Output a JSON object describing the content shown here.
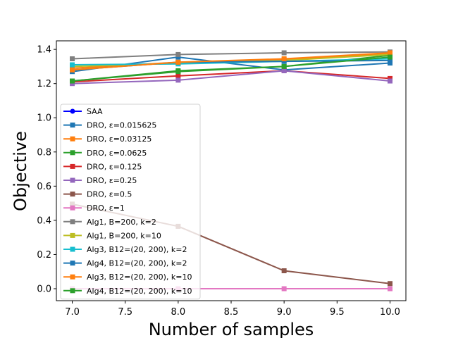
{
  "chart_data": {
    "type": "line",
    "xlabel": "Number of samples",
    "ylabel": "Objective",
    "xlim": [
      6.85,
      10.15
    ],
    "ylim": [
      -0.07,
      1.45
    ],
    "xticks": [
      7.0,
      7.5,
      8.0,
      8.5,
      9.0,
      9.5,
      10.0
    ],
    "xtick_labels": [
      "7.0",
      "7.5",
      "8.0",
      "8.5",
      "9.0",
      "9.5",
      "10.0"
    ],
    "yticks": [
      0.0,
      0.2,
      0.4,
      0.6,
      0.8,
      1.0,
      1.2,
      1.4
    ],
    "ytick_labels": [
      "0.0",
      "0.2",
      "0.4",
      "0.6",
      "0.8",
      "1.0",
      "1.2",
      "1.4"
    ],
    "legend_position": "lower-left",
    "x": [
      7,
      8,
      9,
      10
    ],
    "series": [
      {
        "name": "SAA",
        "color": "#0000ff",
        "marker": "circle",
        "values": [
          null,
          null,
          null,
          null
        ]
      },
      {
        "name": "DRO, ε=0.015625",
        "color": "#1f77b4",
        "marker": "square",
        "values": [
          1.27,
          1.355,
          1.28,
          1.32
        ]
      },
      {
        "name": "DRO, ε=0.03125",
        "color": "#ff7f0e",
        "marker": "square",
        "values": [
          1.29,
          1.325,
          1.34,
          1.375
        ]
      },
      {
        "name": "DRO, ε=0.0625",
        "color": "#2ca02c",
        "marker": "square",
        "values": [
          1.215,
          1.275,
          1.3,
          1.365
        ]
      },
      {
        "name": "DRO, ε=0.125",
        "color": "#d62728",
        "marker": "square",
        "values": [
          1.21,
          1.245,
          1.275,
          1.23
        ]
      },
      {
        "name": "DRO, ε=0.25",
        "color": "#9467bd",
        "marker": "square",
        "values": [
          1.2,
          1.22,
          1.275,
          1.215
        ]
      },
      {
        "name": "DRO, ε=0.5",
        "color": "#8c564b",
        "marker": "square",
        "values": [
          0.495,
          0.365,
          0.105,
          0.03
        ]
      },
      {
        "name": "DRO, ε=1",
        "color": "#e377c2",
        "marker": "square",
        "values": [
          0.0,
          0.0,
          0.0,
          0.0
        ]
      },
      {
        "name": "Alg1, B=200, k=2",
        "color": "#7f7f7f",
        "marker": "square",
        "values": [
          1.345,
          1.37,
          1.38,
          1.385
        ]
      },
      {
        "name": "Alg1, B=200, k=10",
        "color": "#bcbd22",
        "marker": "square",
        "values": [
          1.3,
          1.32,
          1.335,
          1.37
        ]
      },
      {
        "name": "Alg3, B12=(20, 200), k=2",
        "color": "#17becf",
        "marker": "square",
        "values": [
          1.31,
          1.315,
          1.33,
          1.345
        ]
      },
      {
        "name": "Alg4, B12=(20, 200), k=2",
        "color": "#1f77b4",
        "marker": "square",
        "values": [
          1.28,
          1.325,
          1.33,
          1.335
        ]
      },
      {
        "name": "Alg3, B12=(20, 200), k=10",
        "color": "#ff7f0e",
        "marker": "square",
        "values": [
          1.28,
          1.325,
          1.345,
          1.38
        ]
      },
      {
        "name": "Alg4, B12=(20, 200), k=10",
        "color": "#2ca02c",
        "marker": "square",
        "values": [
          1.215,
          1.27,
          1.3,
          1.355
        ]
      }
    ]
  }
}
